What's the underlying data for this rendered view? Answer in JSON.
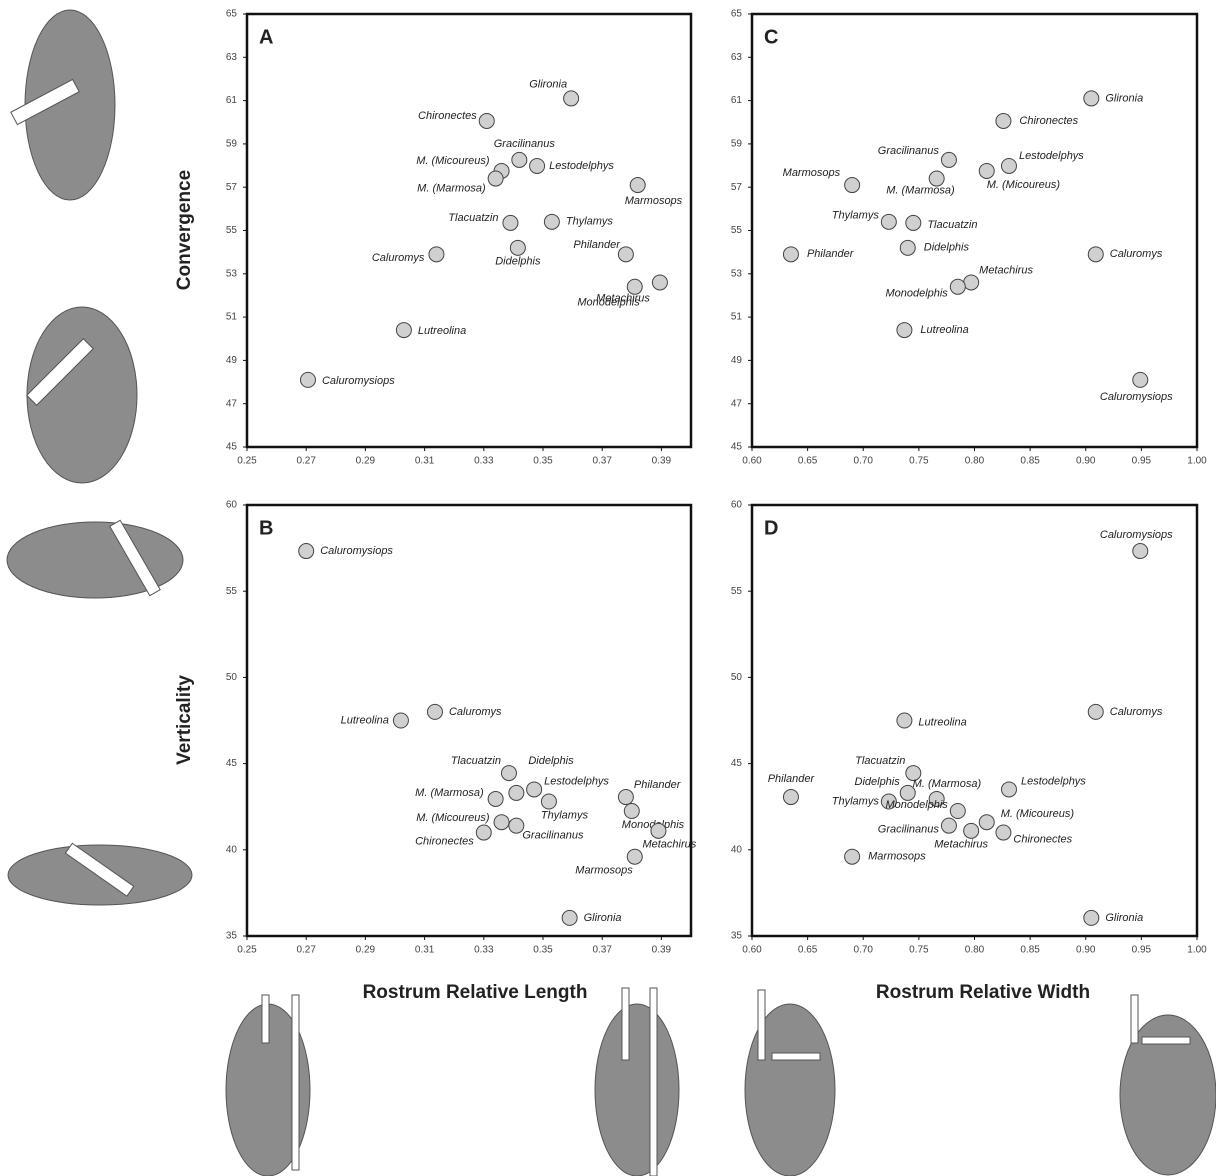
{
  "chart_data": [
    {
      "type": "scatter",
      "panel": "A",
      "ylabel": "Convergence",
      "xlim": [
        0.25,
        0.4
      ],
      "xticks": [
        0.25,
        0.27,
        0.29,
        0.31,
        0.33,
        0.35,
        0.37,
        0.39
      ],
      "ylim": [
        45,
        65
      ],
      "yticks": [
        45,
        47,
        49,
        51,
        53,
        55,
        57,
        59,
        61,
        63,
        65
      ],
      "color": "#d0d0d0",
      "labels": [
        "Glironia",
        "Chironectes",
        "Gracilinanus",
        "M. (Micoureus)",
        "M. (Marmosa)",
        "Lestodelphys",
        "Marmosops",
        "Tlacuatzin",
        "Thylamys",
        "Didelphis",
        "Caluromys",
        "Philander",
        "Metachirus",
        "Monodelphis",
        "Lutreolina",
        "Caluromysiops"
      ],
      "x": [
        0.3595,
        0.331,
        0.342,
        0.336,
        0.334,
        0.348,
        0.382,
        0.339,
        0.353,
        0.3415,
        0.314,
        0.378,
        0.3895,
        0.381,
        0.303,
        0.2706
      ],
      "y": [
        61.1,
        60.06,
        58.26,
        57.75,
        57.4,
        57.98,
        57.1,
        55.35,
        55.4,
        54.2,
        53.9,
        53.9,
        52.6,
        52.4,
        50.4,
        48.1
      ]
    },
    {
      "type": "scatter",
      "panel": "B",
      "ylabel": "Verticality",
      "xlabel": "Rostrum Relative Length",
      "xlim": [
        0.25,
        0.4
      ],
      "xticks": [
        0.25,
        0.27,
        0.29,
        0.31,
        0.33,
        0.35,
        0.37,
        0.39
      ],
      "ylim": [
        35,
        60
      ],
      "yticks": [
        35,
        40,
        45,
        50,
        55,
        60
      ],
      "color": "#d0d0d0",
      "labels": [
        "Caluromysiops",
        "Caluromys",
        "Lutreolina",
        "Tlacuatzin",
        "Didelphis",
        "Lestodelphys",
        "M. (Marmosa)",
        "Thylamys",
        "Philander",
        "Monodelphis",
        "M. (Micoureus)",
        "Gracilinanus",
        "Chironectes",
        "Metachirus",
        "Marmosops",
        "Glironia"
      ],
      "x": [
        0.27,
        0.3135,
        0.302,
        0.3385,
        0.341,
        0.347,
        0.334,
        0.352,
        0.378,
        0.38,
        0.336,
        0.341,
        0.33,
        0.389,
        0.381,
        0.359
      ],
      "y": [
        57.33,
        48.0,
        47.5,
        44.45,
        43.3,
        43.5,
        42.95,
        42.8,
        43.06,
        42.25,
        41.6,
        41.4,
        41.0,
        41.1,
        39.6,
        36.05
      ]
    },
    {
      "type": "scatter",
      "panel": "C",
      "xlim": [
        0.6,
        1.0
      ],
      "xticks": [
        {
          "value": 0.6,
          "label": "0.60"
        },
        0.65,
        {
          "value": 0.7,
          "label": "0.70"
        },
        0.75,
        {
          "value": 0.8,
          "label": "0.80"
        },
        0.85,
        {
          "value": 0.9,
          "label": "0.90"
        },
        0.95,
        {
          "value": 1.0,
          "label": "1.00"
        }
      ],
      "ylim": [
        45,
        65
      ],
      "yticks": [
        45,
        47,
        49,
        51,
        53,
        55,
        57,
        59,
        61,
        63,
        65
      ],
      "color": "#d0d0d0",
      "labels": [
        "Glironia",
        "Chironectes",
        "Gracilinanus",
        "Lestodelphys",
        "M. (Micoureus)",
        "M. (Marmosa)",
        "Marmosops",
        "Thylamys",
        "Tlacuatzin",
        "Didelphis",
        "Philander",
        "Caluromys",
        "Metachirus",
        "Monodelphis",
        "Lutreolina",
        "Caluromysiops"
      ],
      "x": [
        0.905,
        0.826,
        0.777,
        0.831,
        0.811,
        0.766,
        0.69,
        0.723,
        0.745,
        0.74,
        0.635,
        0.909,
        0.797,
        0.785,
        0.737,
        0.949
      ],
      "y": [
        61.1,
        60.06,
        58.26,
        57.98,
        57.75,
        57.4,
        57.1,
        55.4,
        55.35,
        54.2,
        53.9,
        53.9,
        52.6,
        52.4,
        50.4,
        48.1
      ]
    },
    {
      "type": "scatter",
      "panel": "D",
      "xlabel": "Rostrum Relative Width",
      "xlim": [
        0.6,
        1.0
      ],
      "xticks": [
        {
          "value": 0.6,
          "label": "0.60"
        },
        0.65,
        {
          "value": 0.7,
          "label": "0.70"
        },
        0.75,
        {
          "value": 0.8,
          "label": "0.80"
        },
        0.85,
        {
          "value": 0.9,
          "label": "0.90"
        },
        0.95,
        {
          "value": 1.0,
          "label": "1.00"
        }
      ],
      "ylim": [
        35,
        60
      ],
      "yticks": [
        35,
        40,
        45,
        50,
        55,
        60
      ],
      "color": "#d0d0d0",
      "labels": [
        "Caluromysiops",
        "Caluromys",
        "Lutreolina",
        "Tlacuatzin",
        "Philander",
        "Didelphis",
        "M. (Marmosa)",
        "Lestodelphys",
        "Thylamys",
        "Monodelphis",
        "M. (Micoureus)",
        "Gracilinanus",
        "Metachirus",
        "Chironectes",
        "Marmosops",
        "Glironia"
      ],
      "x": [
        0.949,
        0.909,
        0.737,
        0.745,
        0.635,
        0.74,
        0.766,
        0.831,
        0.723,
        0.785,
        0.811,
        0.777,
        0.797,
        0.826,
        0.69,
        0.905
      ],
      "y": [
        57.33,
        48.0,
        47.5,
        44.45,
        43.06,
        43.3,
        42.95,
        43.5,
        42.8,
        42.25,
        41.6,
        41.4,
        41.1,
        41.0,
        39.6,
        36.05
      ]
    }
  ]
}
